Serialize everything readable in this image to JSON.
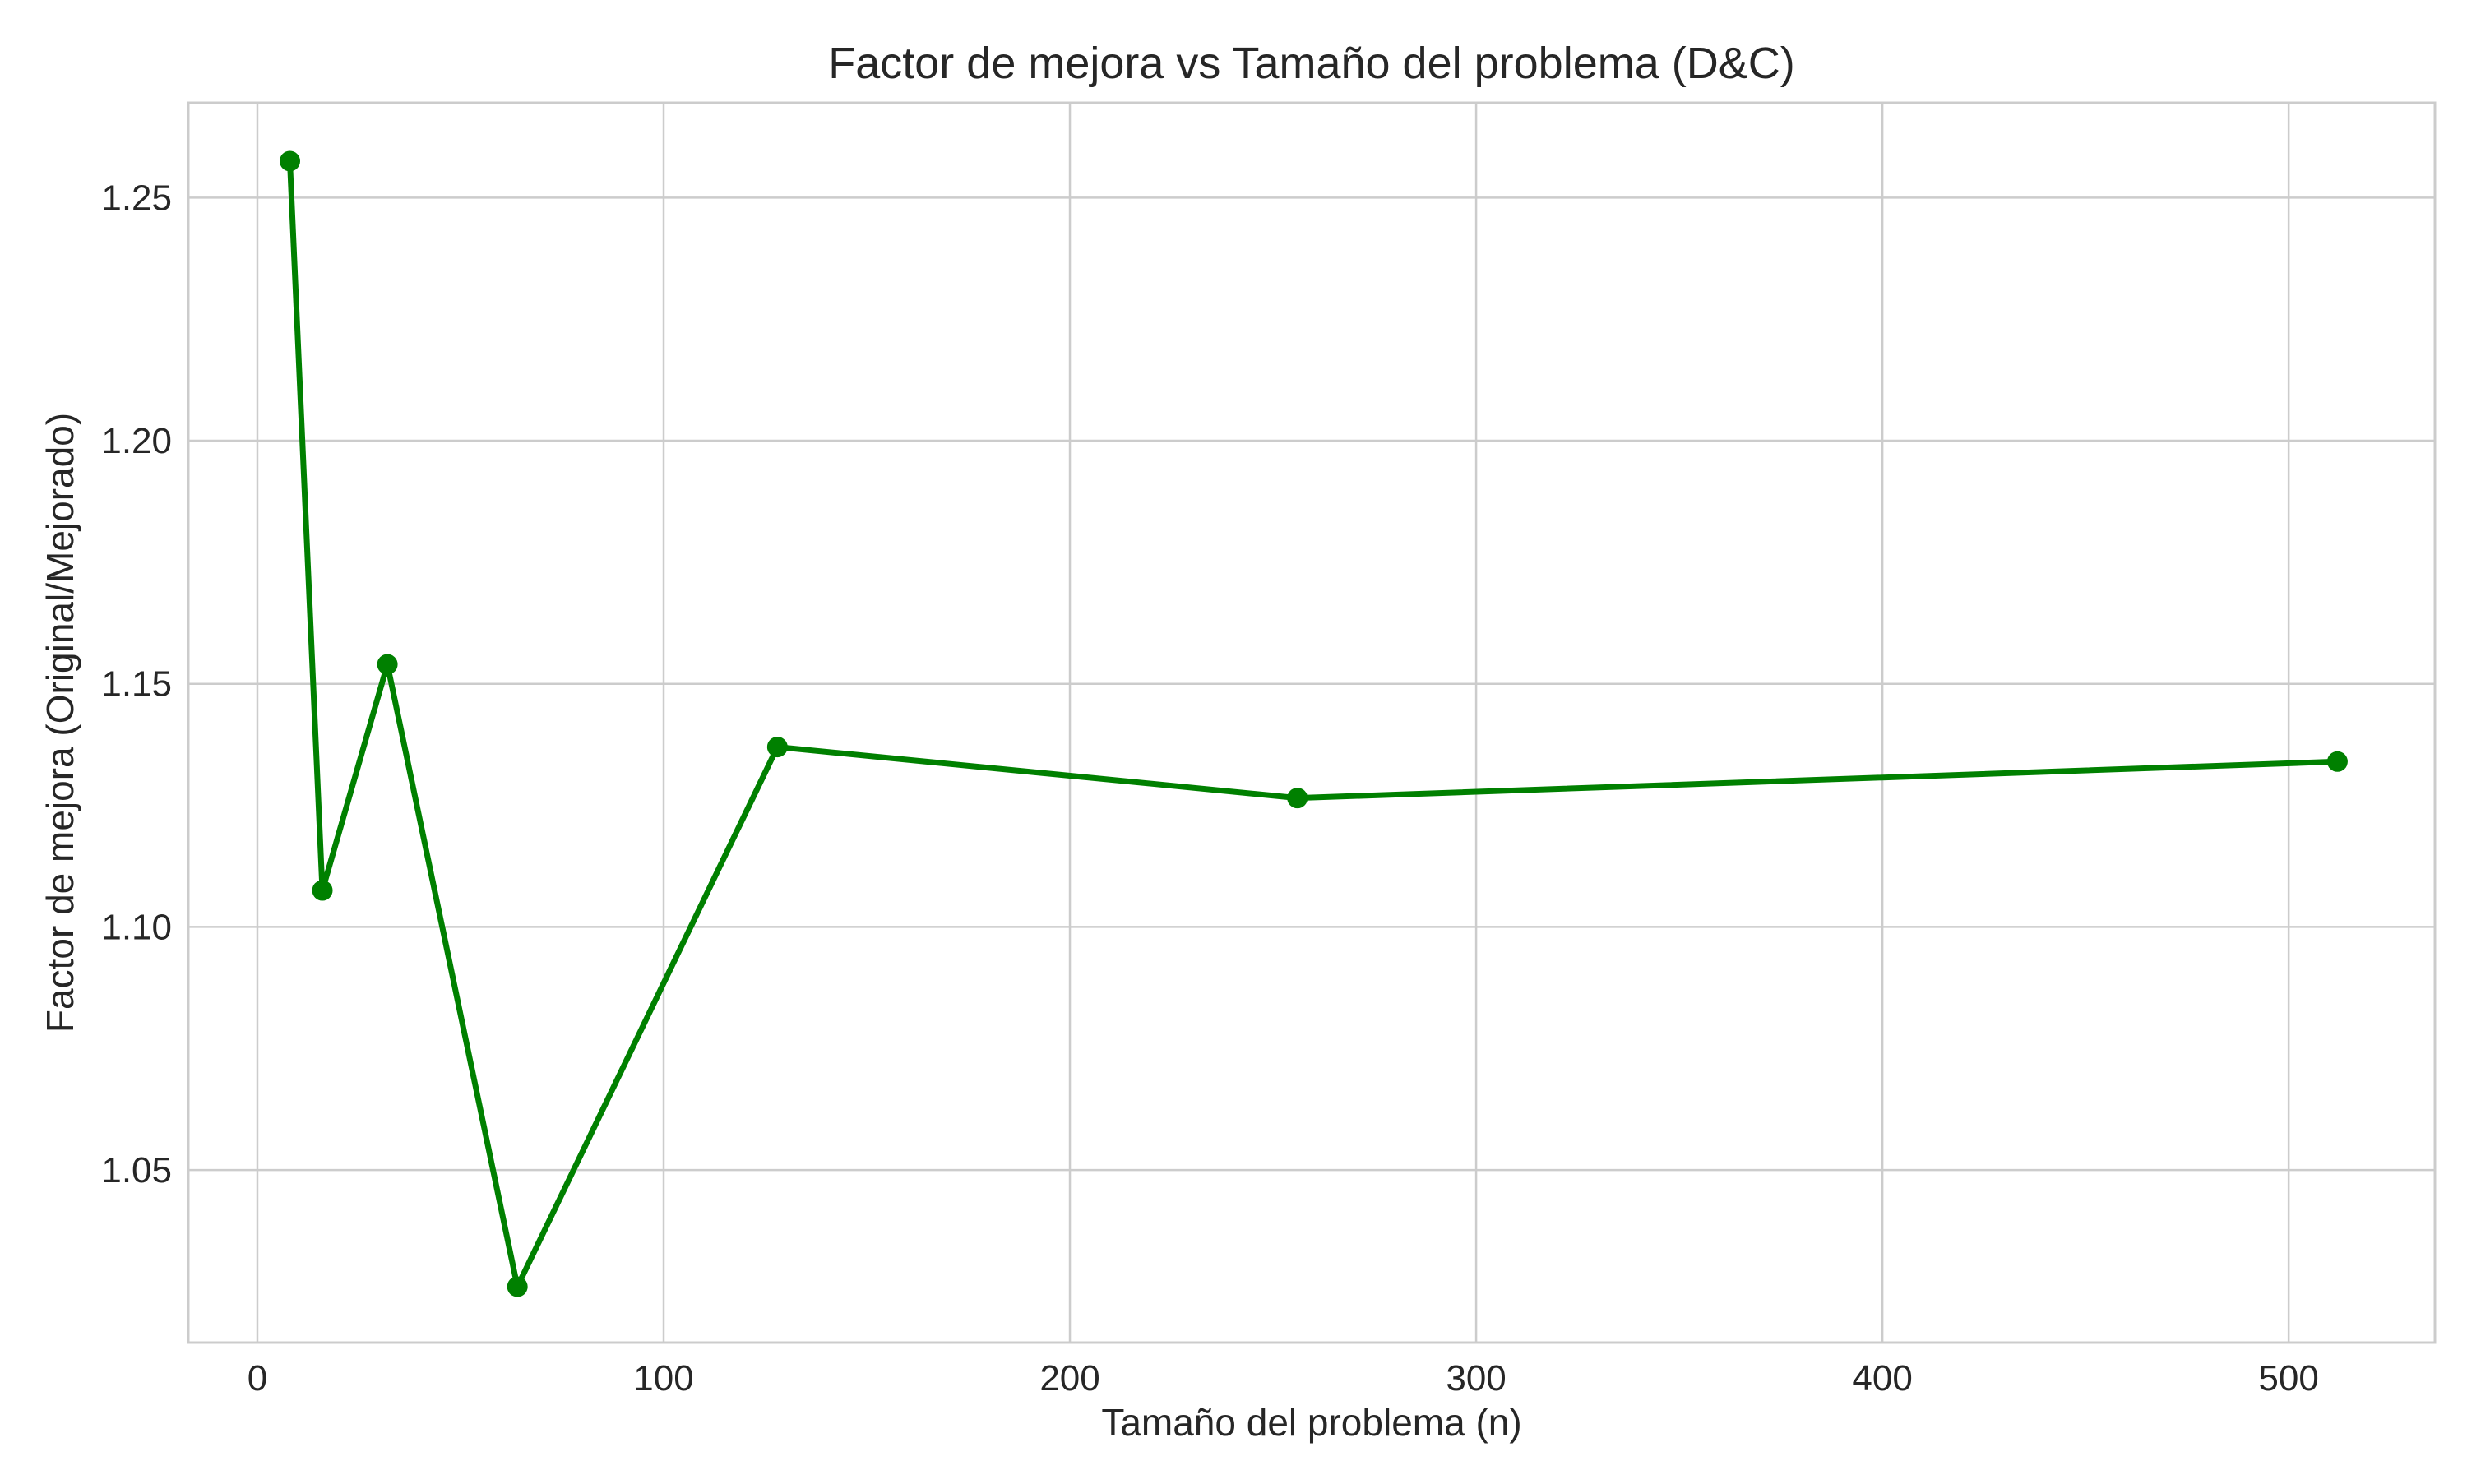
{
  "chart_data": {
    "type": "line",
    "title": "Factor de mejora vs Tamaño del problema (D&C)",
    "xlabel": "Tamaño del problema (n)",
    "ylabel": "Factor de mejora (Original/Mejorado)",
    "xlim": [
      -17,
      536
    ],
    "ylim": [
      1.0145,
      1.2695
    ],
    "xticks": [
      0,
      100,
      200,
      300,
      400,
      500
    ],
    "xtick_labels": [
      "0",
      "100",
      "200",
      "300",
      "400",
      "500"
    ],
    "yticks": [
      1.05,
      1.1,
      1.15,
      1.2,
      1.25
    ],
    "ytick_labels": [
      "1.05",
      "1.10",
      "1.15",
      "1.20",
      "1.25"
    ],
    "grid": true,
    "series": [
      {
        "color": "#008000",
        "marker": "circle",
        "x": [
          8,
          16,
          32,
          64,
          128,
          256,
          512
        ],
        "y": [
          1.2575,
          1.1075,
          1.154,
          1.026,
          1.137,
          1.1265,
          1.134
        ]
      }
    ]
  }
}
